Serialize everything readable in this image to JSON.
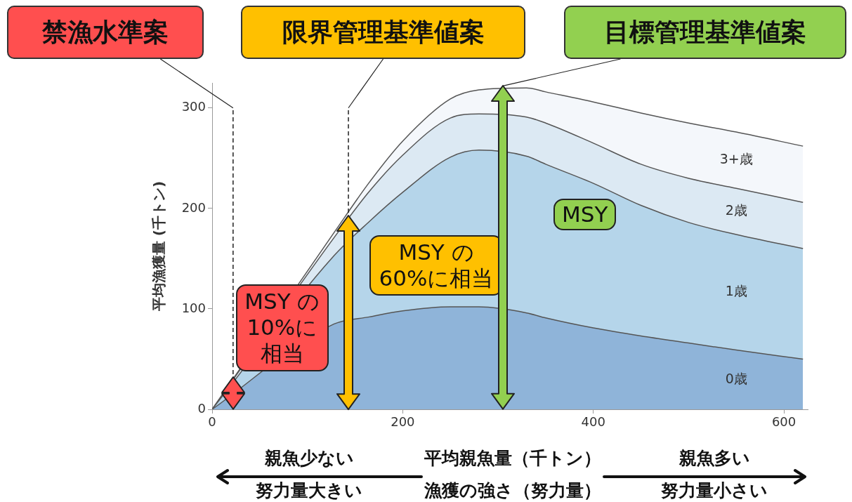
{
  "chart_data": {
    "type": "area",
    "stacked": true,
    "xlabel": "平均親魚量（千トン）",
    "ylabel": "平均漁獲量 (千トン)",
    "x": [
      0,
      128,
      165,
      200,
      250,
      280,
      330,
      350,
      400,
      450,
      500,
      550,
      620
    ],
    "series": [
      {
        "name": "0歳",
        "color": "#8fb4d9",
        "values": [
          0,
          85,
          92,
          98,
          102,
          102,
          96,
          91,
          81,
          73,
          66,
          59,
          50
        ]
      },
      {
        "name": "1歳",
        "color": "#b5d5ea",
        "values": [
          0,
          68,
          95,
          118,
          149,
          156,
          156,
          153,
          144,
          130,
          120,
          115,
          110
        ]
      },
      {
        "name": "2歳",
        "color": "#dce9f3",
        "values": [
          0,
          18,
          30,
          37,
          39,
          36,
          39,
          41,
          40,
          41,
          44,
          46,
          46
        ]
      },
      {
        "name": "3+歳",
        "color": "#f4f7fb",
        "values": [
          0,
          5,
          9,
          14,
          19,
          24,
          29,
          31,
          41,
          51,
          55,
          56,
          56
        ]
      }
    ],
    "xlim": [
      0,
      625
    ],
    "xticks": [
      0,
      200,
      400,
      600
    ],
    "ylim": [
      0,
      325
    ],
    "yticks": [
      0,
      100,
      200,
      300
    ],
    "grid": false,
    "legend": false,
    "ref_lines": [
      {
        "axis": "x",
        "value": 22,
        "label": "禁漁水準案",
        "line_style": "dashed"
      },
      {
        "axis": "x",
        "value": 143,
        "label": "限界管理基準値案",
        "line_style": "dashed"
      }
    ],
    "annotations": [
      {
        "text": "MSY の10%に相当",
        "x": 22,
        "y": 32
      },
      {
        "text": "MSY の60%に相当",
        "x": 143,
        "y": 193
      },
      {
        "text": "目標管理基準値案",
        "x": 305,
        "y": 322
      },
      "MSY",
      "親魚少ない",
      "努力量大きい",
      "漁獲の強さ（努力量）",
      "親魚多い",
      "努力量小さい"
    ]
  }
}
